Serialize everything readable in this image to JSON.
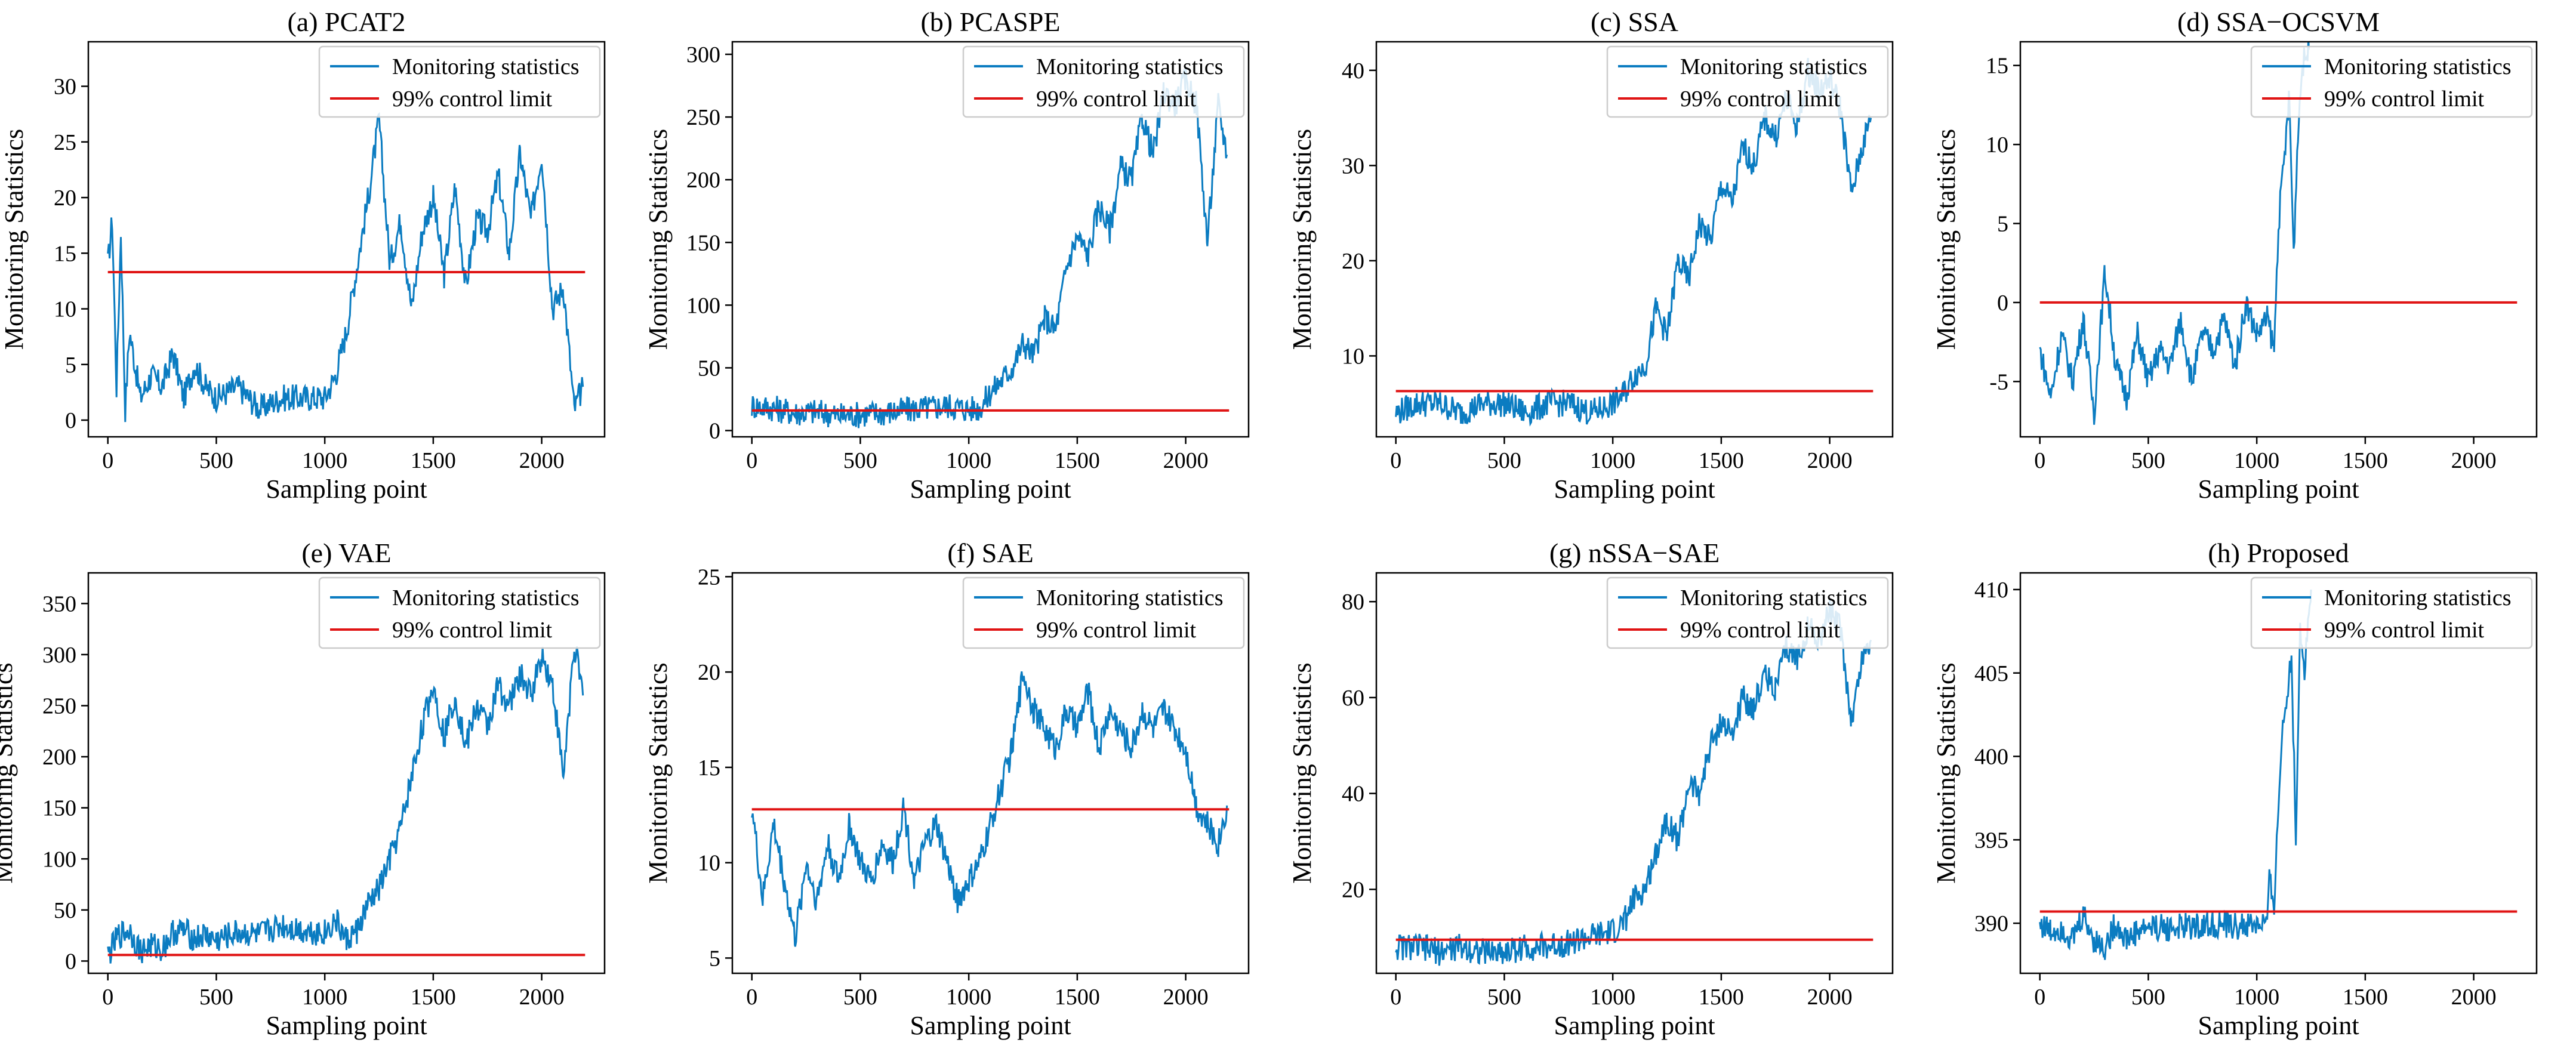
{
  "figure": {
    "colors": {
      "monitoring": "#0b7cc1",
      "limit": "#e01414"
    }
  },
  "chart_data": [
    {
      "type": "line",
      "title": "(a) PCAT2",
      "xlabel": "Sampling point",
      "ylabel": "Monitoring Statistics",
      "xlim": [
        -90,
        2290
      ],
      "ylim": [
        -1.5,
        34
      ],
      "xticks": [
        0,
        500,
        1000,
        1500,
        2000
      ],
      "xtick_labels": [
        "0",
        "500",
        "1000",
        "1500",
        "2000"
      ],
      "yticks": [
        0,
        5,
        10,
        15,
        20,
        25,
        30
      ],
      "ytick_labels": [
        "0",
        "5",
        "10",
        "15",
        "20",
        "25",
        "30"
      ],
      "legend": [
        "Monitoring statistics",
        "99% control limit"
      ],
      "legend_position": "top-right",
      "control_limit": 13.3,
      "series": [
        {
          "name": "Monitoring statistics",
          "x": [
            0,
            20,
            40,
            60,
            80,
            100,
            150,
            200,
            250,
            300,
            350,
            400,
            450,
            500,
            600,
            700,
            800,
            900,
            1000,
            1050,
            1100,
            1150,
            1200,
            1250,
            1300,
            1350,
            1400,
            1450,
            1500,
            1550,
            1600,
            1650,
            1700,
            1750,
            1800,
            1850,
            1900,
            1950,
            2000,
            2050,
            2100,
            2150,
            2190
          ],
          "values": [
            14,
            18,
            3,
            17,
            1,
            8,
            2,
            4,
            3,
            6,
            2,
            5,
            3,
            2,
            3,
            1,
            2,
            2,
            2,
            4,
            8,
            14,
            20,
            27,
            14,
            18,
            10,
            17,
            20,
            13,
            21,
            12,
            18,
            17,
            22,
            15,
            24,
            18,
            24,
            10,
            12,
            1,
            3
          ]
        }
      ]
    },
    {
      "type": "line",
      "title": "(b) PCASPE",
      "xlabel": "Sampling point",
      "ylabel": "Monitoring Statistics",
      "xlim": [
        -90,
        2290
      ],
      "ylim": [
        -5,
        310
      ],
      "xticks": [
        0,
        500,
        1000,
        1500,
        2000
      ],
      "xtick_labels": [
        "0",
        "500",
        "1000",
        "1500",
        "2000"
      ],
      "yticks": [
        0,
        50,
        100,
        150,
        200,
        250,
        300
      ],
      "ytick_labels": [
        "0",
        "50",
        "100",
        "150",
        "200",
        "250",
        "300"
      ],
      "legend": [
        "Monitoring statistics",
        "99% control limit"
      ],
      "legend_position": "top-right",
      "control_limit": 16,
      "series": [
        {
          "name": "Monitoring statistics",
          "x": [
            0,
            100,
            200,
            300,
            400,
            500,
            600,
            700,
            800,
            900,
            1000,
            1050,
            1100,
            1150,
            1200,
            1250,
            1300,
            1350,
            1400,
            1450,
            1500,
            1550,
            1600,
            1650,
            1700,
            1750,
            1800,
            1850,
            1900,
            1950,
            2000,
            2050,
            2100,
            2150,
            2190
          ],
          "values": [
            20,
            18,
            14,
            15,
            12,
            13,
            14,
            16,
            18,
            20,
            17,
            18,
            30,
            40,
            50,
            70,
            60,
            90,
            80,
            130,
            155,
            140,
            180,
            160,
            210,
            200,
            250,
            220,
            270,
            260,
            280,
            260,
            150,
            260,
            220
          ]
        }
      ]
    },
    {
      "type": "line",
      "title": "(c) SSA",
      "xlabel": "Sampling point",
      "ylabel": "Monitoring Statistics",
      "xlim": [
        -90,
        2290
      ],
      "ylim": [
        1.5,
        43
      ],
      "xticks": [
        0,
        500,
        1000,
        1500,
        2000
      ],
      "xtick_labels": [
        "0",
        "500",
        "1000",
        "1500",
        "2000"
      ],
      "yticks": [
        10,
        20,
        30,
        40
      ],
      "ytick_labels": [
        "10",
        "20",
        "30",
        "40"
      ],
      "legend": [
        "Monitoring statistics",
        "99% control limit"
      ],
      "legend_position": "top-right",
      "control_limit": 6.3,
      "series": [
        {
          "name": "Monitoring statistics",
          "x": [
            0,
            100,
            200,
            300,
            400,
            500,
            600,
            700,
            800,
            900,
            1000,
            1050,
            1100,
            1150,
            1200,
            1250,
            1300,
            1350,
            1400,
            1450,
            1500,
            1550,
            1600,
            1650,
            1700,
            1750,
            1800,
            1850,
            1900,
            1950,
            2000,
            2050,
            2100,
            2150,
            2190
          ],
          "values": [
            4,
            5,
            5,
            4,
            5,
            5,
            4,
            5,
            5,
            4,
            5,
            6,
            8,
            9,
            15,
            12,
            20,
            18,
            24,
            22,
            28,
            26,
            32,
            30,
            35,
            33,
            37,
            34,
            40,
            38,
            39,
            36,
            27,
            32,
            35
          ]
        }
      ]
    },
    {
      "type": "line",
      "title": "(d) SSA−OCSVM",
      "xlabel": "Sampling point",
      "ylabel": "Monitoring Statistics",
      "xlim": [
        -90,
        2290
      ],
      "ylim": [
        -8.5,
        16.5
      ],
      "xticks": [
        0,
        500,
        1000,
        1500,
        2000
      ],
      "xtick_labels": [
        "0",
        "500",
        "1000",
        "1500",
        "2000"
      ],
      "yticks": [
        -5,
        0,
        5,
        10,
        15
      ],
      "ytick_labels": [
        "-5",
        "0",
        "5",
        "10",
        "15"
      ],
      "legend": [
        "Monitoring statistics",
        "99% control limit"
      ],
      "legend_position": "top-right",
      "control_limit": 0,
      "series": [
        {
          "name": "Monitoring statistics",
          "x": [
            0,
            50,
            100,
            150,
            200,
            250,
            300,
            350,
            400,
            450,
            500,
            550,
            600,
            650,
            700,
            750,
            800,
            850,
            900,
            950,
            1000,
            1050,
            1080,
            1100,
            1120,
            1150,
            1170,
            1190,
            1210,
            1240
          ],
          "values": [
            -3,
            -6,
            -2,
            -5,
            -1,
            -7,
            2,
            -4,
            -6,
            -2,
            -5,
            -3,
            -4,
            -1,
            -5,
            -2,
            -3,
            -1,
            -4,
            0,
            -2,
            -1,
            -3,
            5,
            8,
            13,
            3,
            11,
            15,
            16
          ]
        }
      ]
    },
    {
      "type": "line",
      "title": "(e) VAE",
      "xlabel": "Sampling point",
      "ylabel": "Monitoring Statistics",
      "xlim": [
        -90,
        2290
      ],
      "ylim": [
        -12,
        380
      ],
      "xticks": [
        0,
        500,
        1000,
        1500,
        2000
      ],
      "xtick_labels": [
        "0",
        "500",
        "1000",
        "1500",
        "2000"
      ],
      "yticks": [
        0,
        50,
        100,
        150,
        200,
        250,
        300,
        350
      ],
      "ytick_labels": [
        "0",
        "50",
        "100",
        "150",
        "200",
        "250",
        "300",
        "350"
      ],
      "legend": [
        "Monitoring statistics",
        "99% control limit"
      ],
      "legend_position": "top-right",
      "control_limit": 6,
      "series": [
        {
          "name": "Monitoring statistics",
          "x": [
            0,
            50,
            100,
            150,
            200,
            250,
            300,
            350,
            400,
            450,
            500,
            600,
            700,
            800,
            900,
            1000,
            1050,
            1100,
            1150,
            1200,
            1250,
            1300,
            1350,
            1400,
            1450,
            1500,
            1550,
            1600,
            1650,
            1700,
            1750,
            1800,
            1850,
            1900,
            1950,
            2000,
            2050,
            2100,
            2150,
            2190
          ],
          "values": [
            5,
            25,
            30,
            10,
            15,
            12,
            28,
            30,
            22,
            25,
            20,
            28,
            25,
            35,
            30,
            28,
            40,
            20,
            30,
            55,
            70,
            100,
            130,
            180,
            230,
            270,
            220,
            260,
            210,
            250,
            230,
            270,
            250,
            280,
            260,
            300,
            270,
            180,
            310,
            260
          ]
        }
      ]
    },
    {
      "type": "line",
      "title": "(f) SAE",
      "xlabel": "Sampling point",
      "ylabel": "Monitoring Statistics",
      "xlim": [
        -90,
        2290
      ],
      "ylim": [
        4.2,
        25.2
      ],
      "xticks": [
        0,
        500,
        1000,
        1500,
        2000
      ],
      "xtick_labels": [
        "0",
        "500",
        "1000",
        "1500",
        "2000"
      ],
      "yticks": [
        5,
        10,
        15,
        20,
        25
      ],
      "ytick_labels": [
        "5",
        "10",
        "15",
        "20",
        "25"
      ],
      "legend": [
        "Monitoring statistics",
        "99% control limit"
      ],
      "legend_position": "top-right",
      "control_limit": 12.8,
      "series": [
        {
          "name": "Monitoring statistics",
          "x": [
            0,
            50,
            100,
            150,
            200,
            250,
            300,
            350,
            400,
            450,
            500,
            550,
            600,
            650,
            700,
            750,
            800,
            850,
            900,
            950,
            1000,
            1050,
            1100,
            1150,
            1200,
            1250,
            1300,
            1350,
            1400,
            1450,
            1500,
            1550,
            1600,
            1650,
            1700,
            1750,
            1800,
            1850,
            1900,
            1950,
            2000,
            2050,
            2100,
            2150,
            2190
          ],
          "values": [
            13,
            8,
            12,
            9,
            6,
            10,
            8,
            11,
            9,
            12,
            10,
            9,
            11,
            10,
            13,
            9,
            11,
            12,
            10,
            8,
            9,
            10,
            12,
            14,
            16,
            20,
            18,
            17,
            16,
            18,
            17,
            19,
            16,
            18,
            17,
            16,
            18,
            17,
            18,
            17,
            16,
            13,
            12,
            11,
            13
          ]
        }
      ]
    },
    {
      "type": "line",
      "title": "(g) nSSA−SAE",
      "xlabel": "Sampling point",
      "ylabel": "Monitoring Statistics",
      "xlim": [
        -90,
        2290
      ],
      "ylim": [
        2.5,
        86
      ],
      "xticks": [
        0,
        500,
        1000,
        1500,
        2000
      ],
      "xtick_labels": [
        "0",
        "500",
        "1000",
        "1500",
        "2000"
      ],
      "yticks": [
        20,
        40,
        60,
        80
      ],
      "ytick_labels": [
        "20",
        "40",
        "60",
        "80"
      ],
      "legend": [
        "Monitoring statistics",
        "99% control limit"
      ],
      "legend_position": "top-right",
      "control_limit": 9.5,
      "series": [
        {
          "name": "Monitoring statistics",
          "x": [
            0,
            100,
            200,
            300,
            400,
            500,
            600,
            700,
            800,
            900,
            1000,
            1050,
            1100,
            1150,
            1200,
            1250,
            1300,
            1350,
            1400,
            1450,
            1500,
            1550,
            1600,
            1650,
            1700,
            1750,
            1800,
            1850,
            1900,
            1950,
            2000,
            2050,
            2100,
            2150,
            2190
          ],
          "values": [
            8,
            8,
            7,
            8,
            7,
            7,
            8,
            8,
            9,
            10,
            11,
            13,
            18,
            20,
            28,
            35,
            30,
            42,
            40,
            50,
            55,
            52,
            60,
            58,
            65,
            62,
            70,
            68,
            75,
            72,
            78,
            74,
            55,
            68,
            72
          ]
        }
      ]
    },
    {
      "type": "line",
      "title": "(h) Proposed",
      "xlabel": "Sampling point",
      "ylabel": "Monitoring Statistics",
      "xlim": [
        -90,
        2290
      ],
      "ylim": [
        387,
        411
      ],
      "xticks": [
        0,
        500,
        1000,
        1500,
        2000
      ],
      "xtick_labels": [
        "0",
        "500",
        "1000",
        "1500",
        "2000"
      ],
      "yticks": [
        390,
        395,
        400,
        405,
        410
      ],
      "ytick_labels": [
        "390",
        "395",
        "400",
        "405",
        "410"
      ],
      "legend": [
        "Monitoring statistics",
        "99% control limit"
      ],
      "legend_position": "top-right",
      "control_limit": 390.7,
      "series": [
        {
          "name": "Monitoring statistics",
          "x": [
            0,
            50,
            100,
            150,
            200,
            250,
            300,
            350,
            400,
            450,
            500,
            600,
            700,
            800,
            900,
            1000,
            1050,
            1060,
            1080,
            1100,
            1120,
            1140,
            1160,
            1180,
            1200,
            1220,
            1250
          ],
          "values": [
            390,
            389.5,
            389.8,
            389,
            390.5,
            389,
            388.5,
            390,
            389,
            389.5,
            389.8,
            389.7,
            389.8,
            389.9,
            389.8,
            389.9,
            390,
            393,
            391,
            397,
            402,
            404,
            406,
            395,
            408,
            405,
            410
          ]
        }
      ]
    }
  ]
}
